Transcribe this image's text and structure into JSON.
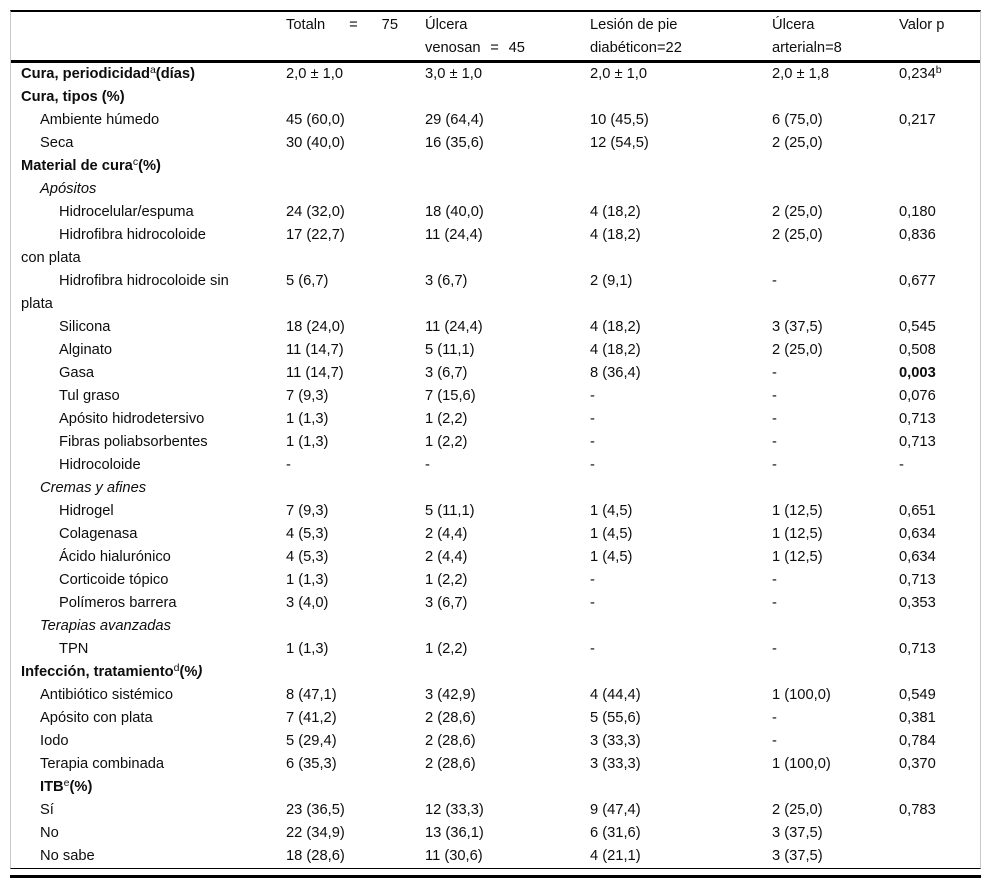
{
  "table": {
    "header": [
      {
        "id": "label",
        "lines": []
      },
      {
        "id": "total",
        "lines": [
          [
            "Totaln",
            "=",
            "75"
          ]
        ]
      },
      {
        "id": "venosa",
        "lines": [
          [
            "Úlcera"
          ],
          [
            "venosan",
            "=",
            "45"
          ]
        ]
      },
      {
        "id": "pie",
        "lines": [
          [
            "Lesión de pie"
          ],
          [
            "diabéticon=22"
          ]
        ]
      },
      {
        "id": "arterial",
        "lines": [
          [
            "Úlcera"
          ],
          [
            "arterialn=8"
          ]
        ]
      },
      {
        "id": "p",
        "lines": [
          [
            "Valor p"
          ]
        ]
      }
    ],
    "rows": [
      {
        "label": "Cura, periodicidad",
        "sup": "a",
        "after": "(días)",
        "style": "bold",
        "indent": 0,
        "values": [
          "2,0 ± 1,0",
          "3,0 ± 1,0",
          "2,0 ± 1,0",
          "2,0 ± 1,8"
        ],
        "p": "0,234",
        "p_sup": "b"
      },
      {
        "label": "Cura, tipos (%)",
        "style": "bold",
        "indent": 0,
        "values": [
          "",
          "",
          "",
          ""
        ],
        "p": ""
      },
      {
        "label": "Ambiente húmedo",
        "indent": 1,
        "values": [
          "45 (60,0)",
          "29 (64,4)",
          "10 (45,5)",
          "6 (75,0)"
        ],
        "p": "0,217"
      },
      {
        "label": "Seca",
        "indent": 1,
        "values": [
          "30 (40,0)",
          "16 (35,6)",
          "12 (54,5)",
          "2 (25,0)"
        ],
        "p": ""
      },
      {
        "label": "Material de cura",
        "sup": "c",
        "after": "(%)",
        "style": "bold",
        "indent": 0,
        "values": [
          "",
          "",
          "",
          ""
        ],
        "p": ""
      },
      {
        "label": "Apósitos",
        "style": "italic",
        "indent": 1,
        "values": [
          "",
          "",
          "",
          ""
        ],
        "p": ""
      },
      {
        "label": "Hidrocelular/espuma",
        "indent": 2,
        "values": [
          "24 (32,0)",
          "18 (40,0)",
          "4 (18,2)",
          "2 (25,0)"
        ],
        "p": "0,180"
      },
      {
        "label": "Hidrofibra hidrocoloide",
        "label2": "con plata",
        "indent": 2,
        "values": [
          "17 (22,7)",
          "11 (24,4)",
          "4 (18,2)",
          "2 (25,0)"
        ],
        "p": "0,836"
      },
      {
        "label": "Hidrofibra hidrocoloide sin",
        "label2": "plata",
        "indent": 2,
        "values": [
          "5 (6,7)",
          "3 (6,7)",
          "2 (9,1)",
          "-"
        ],
        "p": "0,677"
      },
      {
        "label": "Silicona",
        "indent": 2,
        "values": [
          "18 (24,0)",
          "11 (24,4)",
          "4 (18,2)",
          "3 (37,5)"
        ],
        "p": "0,545"
      },
      {
        "label": "Alginato",
        "indent": 2,
        "values": [
          "11 (14,7)",
          "5 (11,1)",
          "4 (18,2)",
          "2 (25,0)"
        ],
        "p": "0,508"
      },
      {
        "label": "Gasa",
        "indent": 2,
        "values": [
          "11 (14,7)",
          "3 (6,7)",
          "8 (36,4)",
          "-"
        ],
        "p": "0,003",
        "p_bold": true
      },
      {
        "label": "Tul graso",
        "indent": 2,
        "values": [
          "7 (9,3)",
          "7 (15,6)",
          "-",
          "-"
        ],
        "p": "0,076"
      },
      {
        "label": "Apósito hidrodetersivo",
        "indent": 2,
        "values": [
          "1 (1,3)",
          "1 (2,2)",
          "-",
          "-"
        ],
        "p": "0,713"
      },
      {
        "label": "Fibras poliabsorbentes",
        "indent": 2,
        "values": [
          "1 (1,3)",
          "1 (2,2)",
          "-",
          "-"
        ],
        "p": "0,713"
      },
      {
        "label": "Hidrocoloide",
        "indent": 2,
        "values": [
          "-",
          "-",
          "-",
          "-"
        ],
        "p": "-"
      },
      {
        "label": "Cremas y afines",
        "style": "italic",
        "indent": 1,
        "values": [
          "",
          "",
          "",
          ""
        ],
        "p": ""
      },
      {
        "label": "Hidrogel",
        "indent": 2,
        "values": [
          "7 (9,3)",
          "5 (11,1)",
          "1 (4,5)",
          "1 (12,5)"
        ],
        "p": "0,651"
      },
      {
        "label": "Colagenasa",
        "indent": 2,
        "values": [
          "4 (5,3)",
          "2 (4,4)",
          "1 (4,5)",
          "1 (12,5)"
        ],
        "p": "0,634"
      },
      {
        "label": "Ácido hialurónico",
        "indent": 2,
        "values": [
          "4 (5,3)",
          "2 (4,4)",
          "1 (4,5)",
          "1 (12,5)"
        ],
        "p": "0,634"
      },
      {
        "label": "Corticoide tópico",
        "indent": 2,
        "values": [
          "1 (1,3)",
          "1 (2,2)",
          "-",
          "-"
        ],
        "p": "0,713"
      },
      {
        "label": "Polímeros barrera",
        "indent": 2,
        "values": [
          "3 (4,0)",
          "3 (6,7)",
          "-",
          "-"
        ],
        "p": "0,353"
      },
      {
        "label": "Terapias avanzadas",
        "style": "italic",
        "indent": 1,
        "values": [
          "",
          "",
          "",
          ""
        ],
        "p": ""
      },
      {
        "label": "TPN",
        "indent": 2,
        "values": [
          "1 (1,3)",
          "1 (2,2)",
          "-",
          "-"
        ],
        "p": "0,713"
      },
      {
        "label": "Infección, tratamiento",
        "sup": "d",
        "after": "(%",
        "after_italic": ")",
        "style": "bold",
        "indent": 0,
        "values": [
          "",
          "",
          "",
          ""
        ],
        "p": ""
      },
      {
        "label": "Antibiótico sistémico",
        "indent": 1,
        "values": [
          "8 (47,1)",
          "3 (42,9)",
          "4 (44,4)",
          "1 (100,0)"
        ],
        "p": "0,549"
      },
      {
        "label": "Apósito con plata",
        "indent": 1,
        "values": [
          "7 (41,2)",
          "2 (28,6)",
          "5 (55,6)",
          "-"
        ],
        "p": "0,381"
      },
      {
        "label": "Iodo",
        "indent": 1,
        "values": [
          "5 (29,4)",
          "2 (28,6)",
          "3 (33,3)",
          "-"
        ],
        "p": "0,784"
      },
      {
        "label": "Terapia combinada",
        "indent": 1,
        "values": [
          "6 (35,3)",
          "2 (28,6)",
          "3 (33,3)",
          "1 (100,0)"
        ],
        "p": "0,370"
      },
      {
        "label": "ITB",
        "sup": "e",
        "after": "(%)",
        "style": "bold",
        "indent": 1,
        "values": [
          "",
          "",
          "",
          ""
        ],
        "p": ""
      },
      {
        "label": "Sí",
        "indent": 1,
        "values": [
          "23 (36,5)",
          "12 (33,3)",
          "9 (47,4)",
          "2 (25,0)"
        ],
        "p": "0,783"
      },
      {
        "label": "No",
        "indent": 1,
        "values": [
          "22 (34,9)",
          "13 (36,1)",
          "6 (31,6)",
          "3 (37,5)"
        ],
        "p": ""
      },
      {
        "label": "No sabe",
        "indent": 1,
        "values": [
          "18 (28,6)",
          "11 (30,6)",
          "4 (21,1)",
          "3 (37,5)"
        ],
        "p": ""
      }
    ]
  }
}
